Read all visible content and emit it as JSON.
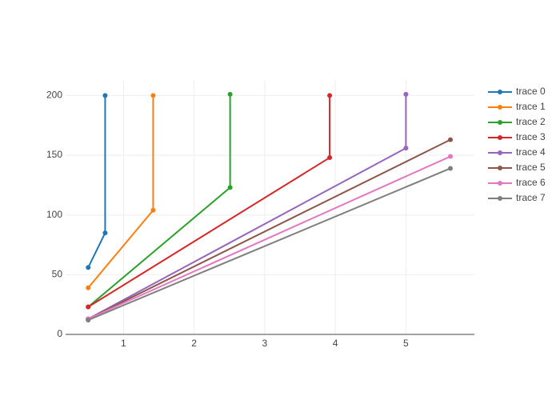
{
  "chart_data": {
    "type": "line",
    "series": [
      {
        "name": "trace 0",
        "color": "#1f77b4",
        "x": [
          0.5,
          0.74,
          0.74
        ],
        "values": [
          56,
          85,
          200
        ]
      },
      {
        "name": "trace 1",
        "color": "#ff7f0e",
        "x": [
          0.5,
          1.42,
          1.42
        ],
        "values": [
          39,
          104,
          200
        ]
      },
      {
        "name": "trace 2",
        "color": "#2ca02c",
        "x": [
          0.5,
          2.51,
          2.51
        ],
        "values": [
          23,
          123,
          201
        ]
      },
      {
        "name": "trace 3",
        "color": "#d62728",
        "x": [
          0.5,
          3.92,
          3.92
        ],
        "values": [
          23,
          148,
          200
        ]
      },
      {
        "name": "trace 4",
        "color": "#9467bd",
        "x": [
          0.5,
          5.0,
          5.0
        ],
        "values": [
          13,
          156,
          201
        ]
      },
      {
        "name": "trace 5",
        "color": "#8c564b",
        "x": [
          0.5,
          5.63
        ],
        "values": [
          13,
          163
        ]
      },
      {
        "name": "trace 6",
        "color": "#e377c2",
        "x": [
          0.5,
          5.63
        ],
        "values": [
          13,
          149
        ]
      },
      {
        "name": "trace 7",
        "color": "#7f7f7f",
        "x": [
          0.5,
          5.63
        ],
        "values": [
          12,
          139
        ]
      }
    ],
    "xlim": [
      0.18,
      5.97
    ],
    "xticks": [
      1,
      2,
      3,
      4,
      5
    ],
    "ylim": [
      0,
      213
    ],
    "yticks": [
      0,
      50,
      100,
      150,
      200
    ],
    "grid": true,
    "legend": "right"
  }
}
